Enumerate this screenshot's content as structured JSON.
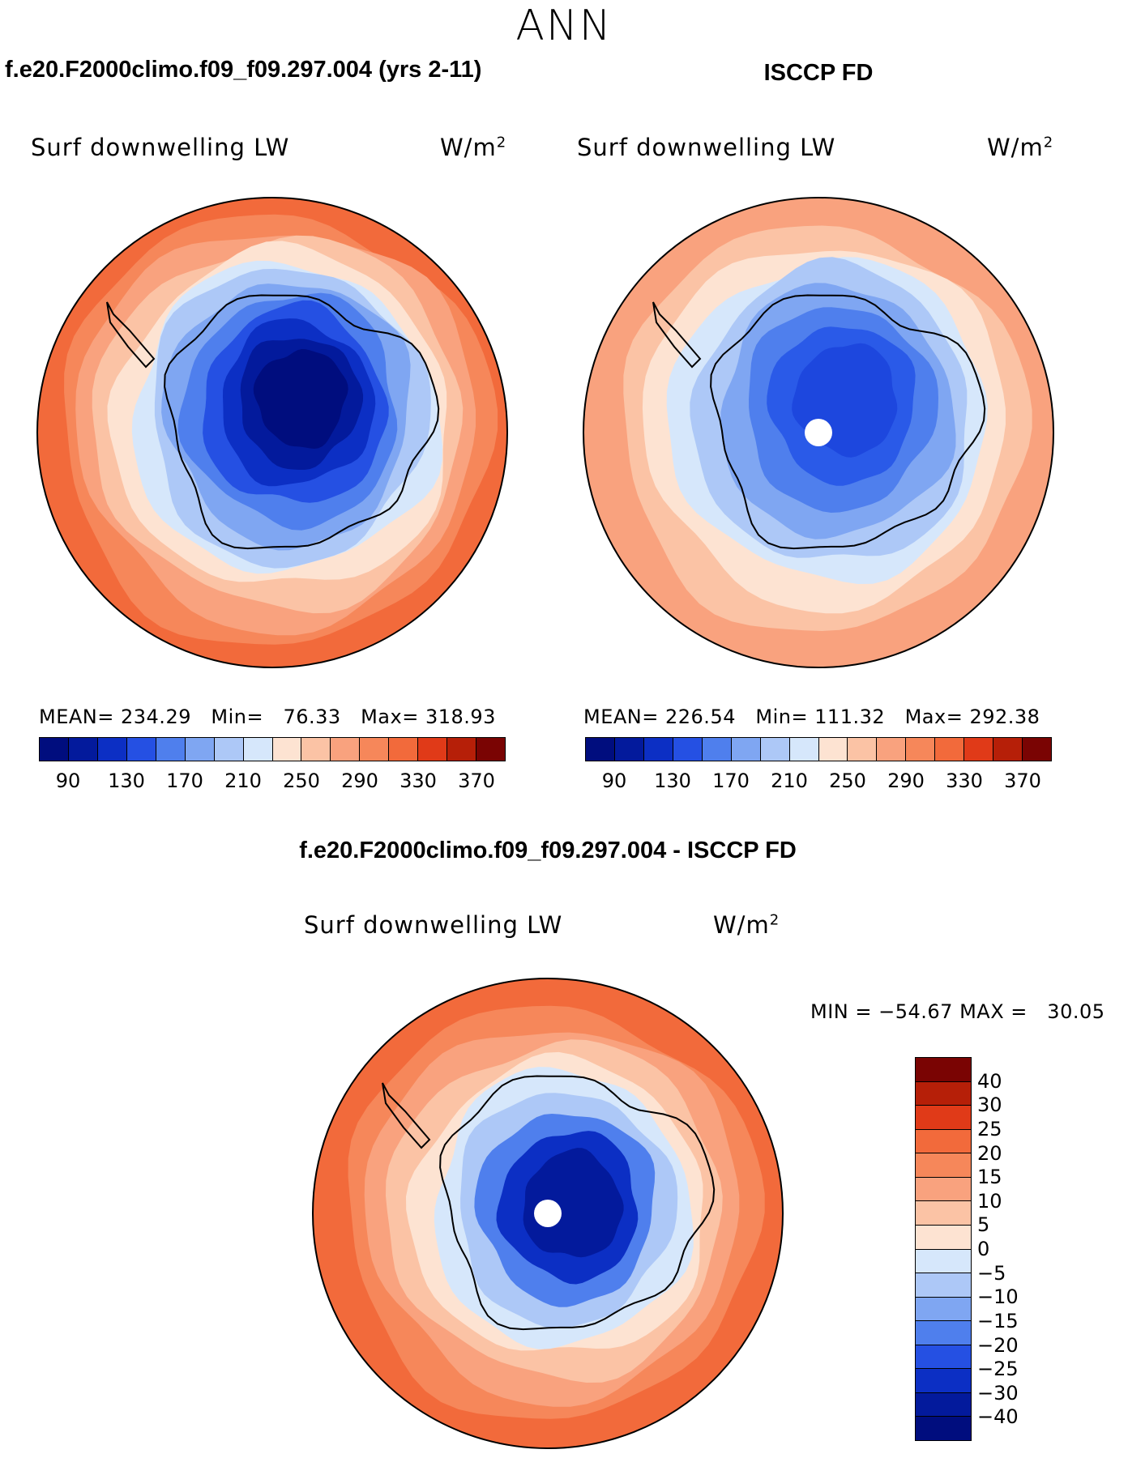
{
  "season": "ANN",
  "panels": [
    {
      "title": "f.e20.F2000climo.f09_f09.297.004 (yrs 2-11)",
      "variable": "Surf downwelling LW",
      "units": "W/m",
      "units_exp": "2",
      "mean_label": "MEAN=",
      "mean": "234.29",
      "min_label": "Min=",
      "min": "76.33",
      "max_label": "Max=",
      "max": "318.93",
      "has_pole_hole": false,
      "rings": [
        {
          "level": "330",
          "color": "#f26a3b"
        },
        {
          "level": "310",
          "color": "#f6875a"
        },
        {
          "level": "290",
          "color": "#f9a27e"
        },
        {
          "level": "270",
          "color": "#fbc3a5"
        },
        {
          "level": "250",
          "color": "#fde3d2"
        },
        {
          "level": "230",
          "color": "#d6e7fb"
        },
        {
          "level": "210",
          "color": "#adc8f7"
        },
        {
          "level": "190",
          "color": "#7fa6f2"
        },
        {
          "level": "170",
          "color": "#4f7fed"
        },
        {
          "level": "150",
          "color": "#2550e3"
        },
        {
          "level": "130",
          "color": "#0c2fc4"
        },
        {
          "level": "110",
          "color": "#031a9c"
        },
        {
          "level": "90",
          "color": "#000d7e"
        }
      ]
    },
    {
      "title": "ISCCP FD",
      "variable": "Surf downwelling LW",
      "units": "W/m",
      "units_exp": "2",
      "mean_label": "MEAN=",
      "mean": "226.54",
      "min_label": "Min=",
      "min": "111.32",
      "max_label": "Max=",
      "max": "292.38",
      "has_pole_hole": true,
      "rings": [
        {
          "level": "290",
          "color": "#f9a27e"
        },
        {
          "level": "270",
          "color": "#fbc3a5"
        },
        {
          "level": "250",
          "color": "#fde3d2"
        },
        {
          "level": "230",
          "color": "#d6e7fb"
        },
        {
          "level": "210",
          "color": "#adc8f7"
        },
        {
          "level": "190",
          "color": "#7fa6f2"
        },
        {
          "level": "170",
          "color": "#4f7fed"
        },
        {
          "level": "150",
          "color": "#2a5ae8"
        },
        {
          "level": "130",
          "color": "#1d47de"
        }
      ]
    }
  ],
  "top_colorbar": {
    "colors": [
      "#000d7e",
      "#031a9c",
      "#0c2fc4",
      "#2550e3",
      "#4f7fed",
      "#7fa6f2",
      "#adc8f7",
      "#d6e7fb",
      "#fde3d2",
      "#fbc3a5",
      "#f9a27e",
      "#f6875a",
      "#f26a3b",
      "#e03a18",
      "#b61f08",
      "#7a0403"
    ],
    "ticks": [
      "90",
      "130",
      "170",
      "210",
      "250",
      "290",
      "330",
      "370"
    ]
  },
  "diff_panel": {
    "title": "f.e20.F2000climo.f09_f09.297.004 - ISCCP FD",
    "variable": "Surf downwelling LW",
    "units": "W/m",
    "units_exp": "2",
    "minmax_label": "MIN =",
    "min": "−54.67",
    "max_label": "MAX =",
    "max": "30.05",
    "has_pole_hole": true,
    "rings": [
      {
        "level": "20",
        "color": "#f26a3b"
      },
      {
        "level": "15",
        "color": "#f6875a"
      },
      {
        "level": "10",
        "color": "#f9a27e"
      },
      {
        "level": "5",
        "color": "#fbc3a5"
      },
      {
        "level": "0",
        "color": "#fde3d2"
      },
      {
        "level": "-5",
        "color": "#d6e7fb"
      },
      {
        "level": "-10",
        "color": "#adc8f7"
      },
      {
        "level": "-20",
        "color": "#4f7fed"
      },
      {
        "level": "-30",
        "color": "#0c2fc4"
      },
      {
        "level": "-40",
        "color": "#031a9c"
      }
    ]
  },
  "diff_colorbar": {
    "colors": [
      "#7a0403",
      "#b61f08",
      "#e03a18",
      "#f26a3b",
      "#f6875a",
      "#f9a27e",
      "#fbc3a5",
      "#fde3d2",
      "#d6e7fb",
      "#adc8f7",
      "#7fa6f2",
      "#4f7fed",
      "#2550e3",
      "#0c2fc4",
      "#031a9c",
      "#000d7e"
    ],
    "ticks": [
      "40",
      "30",
      "25",
      "20",
      "15",
      "10",
      "5",
      "0",
      "−5",
      "−10",
      "−15",
      "−20",
      "−25",
      "−30",
      "−40"
    ]
  }
}
